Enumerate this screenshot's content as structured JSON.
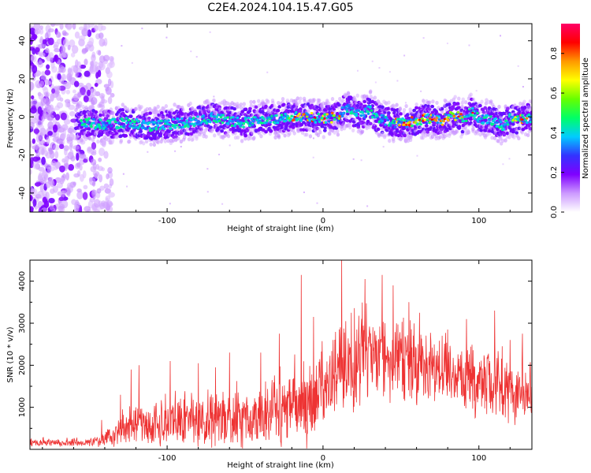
{
  "figure": {
    "title": "C2E4.2024.104.15.47.G05"
  },
  "chart_data": [
    {
      "type": "heatmap",
      "title": "",
      "xlabel": "Height of straight line (km)",
      "ylabel": "Frequency (Hz)",
      "xlim": [
        -188,
        134
      ],
      "ylim": [
        -50,
        49
      ],
      "x_ticks": [
        -100,
        0,
        100
      ],
      "y_ticks": [
        -40,
        -20,
        0,
        20,
        40
      ],
      "grid": false,
      "colorbar": {
        "label": "Normalized spectral amplitude",
        "range": [
          0.0,
          0.95
        ],
        "ticks": [
          "0.0",
          "0.2",
          "0.4",
          "0.6",
          "0.8"
        ],
        "tick_values": [
          0.0,
          0.2,
          0.4,
          0.6,
          0.8
        ],
        "colors": [
          "#ffffff",
          "#cc99ff",
          "#7f00ff",
          "#3333ff",
          "#00ccff",
          "#00ff66",
          "#66ff00",
          "#ffff00",
          "#ff9900",
          "#ff0000",
          "#ff0066"
        ]
      },
      "band": {
        "center_hz": [
          [
            -155,
            -3
          ],
          [
            -140,
            -4
          ],
          [
            -125,
            -3
          ],
          [
            -110,
            -5
          ],
          [
            -100,
            -4
          ],
          [
            -90,
            -3
          ],
          [
            -80,
            -2
          ],
          [
            -70,
            0
          ],
          [
            -60,
            -2
          ],
          [
            -50,
            -3
          ],
          [
            -40,
            -1
          ],
          [
            -30,
            -1
          ],
          [
            -20,
            0
          ],
          [
            -10,
            0
          ],
          [
            0,
            -1
          ],
          [
            10,
            0
          ],
          [
            15,
            5
          ],
          [
            20,
            2
          ],
          [
            25,
            1
          ],
          [
            30,
            4
          ],
          [
            35,
            -1
          ],
          [
            45,
            -3
          ],
          [
            55,
            -3
          ],
          [
            65,
            -1
          ],
          [
            75,
            -2
          ],
          [
            85,
            1
          ],
          [
            90,
            -1
          ],
          [
            95,
            3
          ],
          [
            100,
            -1
          ],
          [
            105,
            -1
          ],
          [
            110,
            -2
          ],
          [
            115,
            -5
          ],
          [
            120,
            -1
          ],
          [
            125,
            -2
          ],
          [
            134,
            0
          ]
        ],
        "half_width_hz": 7
      },
      "noise_region_x": [
        -188,
        -135
      ]
    },
    {
      "type": "line",
      "title": "",
      "xlabel": "Height of straight line (km)",
      "ylabel": "SNR (10 * v/v)",
      "xlim": [
        -188,
        134
      ],
      "ylim": [
        0,
        4500
      ],
      "x_ticks": [
        -100,
        0,
        100
      ],
      "y_ticks": [
        1000,
        2000,
        3000,
        4000
      ],
      "grid": false,
      "color": "#ee3333",
      "envelope": {
        "x": [
          -188,
          -150,
          -140,
          -130,
          -120,
          -100,
          -80,
          -60,
          -40,
          -20,
          -10,
          0,
          10,
          20,
          30,
          40,
          50,
          60,
          80,
          100,
          120,
          134
        ],
        "base": [
          150,
          150,
          200,
          400,
          500,
          600,
          600,
          600,
          700,
          900,
          1000,
          1300,
          1700,
          1900,
          2000,
          2000,
          1900,
          1800,
          1700,
          1500,
          1300,
          1200
        ],
        "amp": [
          150,
          150,
          250,
          600,
          800,
          900,
          1000,
          1100,
          1200,
          1500,
          1700,
          1600,
          1800,
          2000,
          2000,
          1800,
          1700,
          1500,
          1400,
          1300,
          1200,
          1000
        ]
      },
      "peaks": [
        [
          -142,
          700
        ],
        [
          -130,
          1300
        ],
        [
          -123,
          1900
        ],
        [
          -118,
          2000
        ],
        [
          -98,
          2100
        ],
        [
          -80,
          2050
        ],
        [
          -69,
          1950
        ],
        [
          -60,
          2300
        ],
        [
          -40,
          2300
        ],
        [
          -28,
          2750
        ],
        [
          -14,
          4150
        ],
        [
          -6,
          3150
        ],
        [
          12,
          4550
        ],
        [
          27,
          4050
        ],
        [
          38,
          4150
        ],
        [
          45,
          3900
        ],
        [
          55,
          3500
        ],
        [
          62,
          3250
        ],
        [
          80,
          2850
        ],
        [
          92,
          3100
        ],
        [
          110,
          3300
        ],
        [
          120,
          2600
        ],
        [
          128,
          2750
        ]
      ]
    }
  ]
}
